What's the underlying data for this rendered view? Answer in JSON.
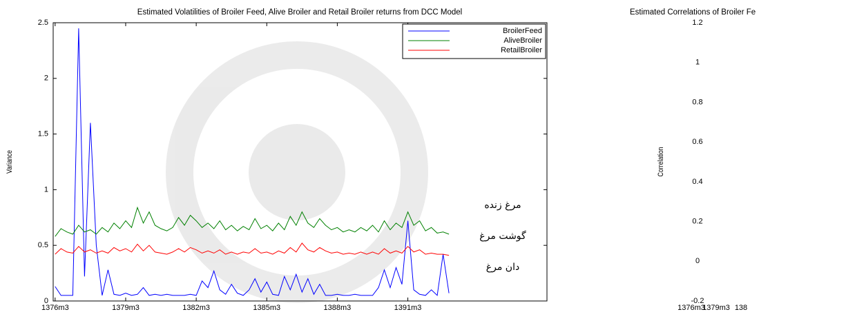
{
  "chart_data": [
    {
      "type": "line",
      "title": "Estimated Volatilities of Broiler Feed, Alive Broiler and Retail Broiler returns from DCC Model",
      "y_label": "Variance",
      "x": [
        0,
        3,
        6,
        9,
        12,
        15,
        18,
        21,
        24,
        27,
        30,
        33,
        36,
        39,
        42,
        45,
        48,
        51,
        54,
        57,
        60,
        63,
        66,
        69,
        72,
        75,
        78,
        81,
        84,
        87,
        90,
        93,
        96,
        99,
        102,
        105,
        108,
        111,
        114,
        117,
        120,
        123,
        126,
        129,
        132,
        135,
        138,
        141,
        144,
        147,
        150,
        153,
        156,
        159,
        162,
        165,
        168,
        171,
        174,
        177,
        180,
        183,
        186,
        189,
        192,
        195,
        198,
        201
      ],
      "series": [
        {
          "name": "BroilerFeed",
          "color": "#0000ff",
          "values": [
            0.13,
            0.05,
            0.05,
            0.05,
            2.45,
            0.22,
            1.6,
            0.5,
            0.05,
            0.28,
            0.06,
            0.05,
            0.07,
            0.05,
            0.06,
            0.12,
            0.05,
            0.06,
            0.05,
            0.06,
            0.05,
            0.05,
            0.05,
            0.06,
            0.05,
            0.18,
            0.12,
            0.27,
            0.1,
            0.06,
            0.15,
            0.07,
            0.05,
            0.1,
            0.2,
            0.08,
            0.17,
            0.06,
            0.05,
            0.22,
            0.1,
            0.24,
            0.08,
            0.2,
            0.06,
            0.15,
            0.05,
            0.05,
            0.06,
            0.05,
            0.05,
            0.06,
            0.05,
            0.05,
            0.05,
            0.12,
            0.28,
            0.12,
            0.3,
            0.15,
            0.72,
            0.1,
            0.06,
            0.05,
            0.1,
            0.05,
            0.42,
            0.07
          ]
        },
        {
          "name": "AliveBroiler",
          "color": "#008000",
          "values": [
            0.58,
            0.65,
            0.62,
            0.6,
            0.68,
            0.62,
            0.64,
            0.6,
            0.66,
            0.62,
            0.7,
            0.65,
            0.72,
            0.66,
            0.84,
            0.7,
            0.8,
            0.68,
            0.65,
            0.63,
            0.66,
            0.75,
            0.68,
            0.77,
            0.72,
            0.66,
            0.7,
            0.65,
            0.72,
            0.64,
            0.68,
            0.63,
            0.67,
            0.64,
            0.74,
            0.65,
            0.68,
            0.63,
            0.7,
            0.64,
            0.76,
            0.68,
            0.8,
            0.7,
            0.66,
            0.74,
            0.68,
            0.64,
            0.66,
            0.62,
            0.64,
            0.62,
            0.66,
            0.63,
            0.68,
            0.62,
            0.72,
            0.64,
            0.7,
            0.66,
            0.8,
            0.68,
            0.72,
            0.63,
            0.66,
            0.61,
            0.62,
            0.6
          ]
        },
        {
          "name": "RetailBroiler",
          "color": "#ff0000",
          "values": [
            0.42,
            0.47,
            0.44,
            0.43,
            0.49,
            0.44,
            0.46,
            0.43,
            0.45,
            0.43,
            0.48,
            0.45,
            0.47,
            0.44,
            0.51,
            0.45,
            0.5,
            0.44,
            0.43,
            0.42,
            0.44,
            0.47,
            0.44,
            0.48,
            0.46,
            0.43,
            0.45,
            0.43,
            0.46,
            0.42,
            0.44,
            0.42,
            0.44,
            0.43,
            0.47,
            0.43,
            0.44,
            0.42,
            0.45,
            0.43,
            0.48,
            0.44,
            0.52,
            0.46,
            0.44,
            0.48,
            0.45,
            0.43,
            0.44,
            0.42,
            0.43,
            0.42,
            0.44,
            0.42,
            0.44,
            0.42,
            0.47,
            0.43,
            0.45,
            0.43,
            0.49,
            0.44,
            0.46,
            0.42,
            0.43,
            0.42,
            0.42,
            0.41
          ]
        }
      ],
      "xlim": [
        -1,
        251
      ],
      "xticks": [
        {
          "value": 0,
          "label": "1376m3"
        },
        {
          "value": 36,
          "label": "1379m3"
        },
        {
          "value": 72,
          "label": "1382m3"
        },
        {
          "value": 108,
          "label": "1385m3"
        },
        {
          "value": 144,
          "label": "1388m3"
        },
        {
          "value": 180,
          "label": "1391m3"
        }
      ],
      "ylim": [
        0,
        2.5
      ],
      "yticks": [
        0,
        0.5,
        1,
        1.5,
        2,
        2.5
      ],
      "legend": "upper right",
      "annotations": [
        "مرغ زنده",
        "گوشت مرغ",
        "دان مرغ"
      ]
    },
    {
      "type": "line",
      "title": "Estimated Correlations of Broiler Fe",
      "y_label": "Correlation",
      "xlim": [
        -1,
        251
      ],
      "xticks": [
        {
          "value": 0,
          "label": "1376m3"
        },
        {
          "value": 36,
          "label": "1379m3"
        },
        {
          "value": 72,
          "label": "138"
        }
      ],
      "ylim": [
        -0.2,
        1.2
      ],
      "yticks": [
        -0.2,
        0,
        0.2,
        0.4,
        0.6,
        0.8,
        1,
        1.2
      ]
    }
  ]
}
